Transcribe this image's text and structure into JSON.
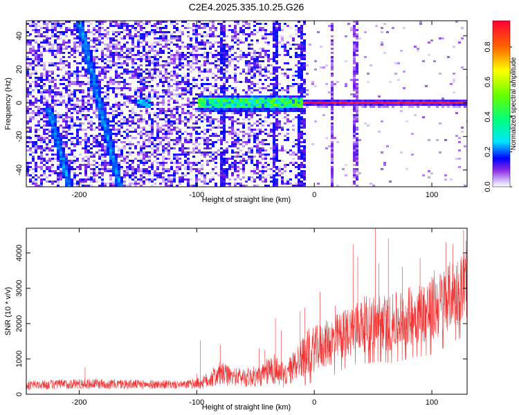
{
  "title": "C2E4.2025.335.10.25.G26",
  "colors": {
    "snr_line": "#ee3333",
    "frame": "#000000"
  },
  "chart_data": [
    {
      "type": "heatmap",
      "xlabel": "Height of straight line (km)",
      "ylabel": "Frequency (Hz)",
      "xlim": [
        -245,
        130
      ],
      "ylim": [
        -50,
        49
      ],
      "x_ticks": [
        -200,
        -100,
        0,
        100
      ],
      "y_ticks": [
        -40,
        -20,
        0,
        20,
        40
      ],
      "colorbar": {
        "label": "Normalized spectral amplitude",
        "range": [
          0.0,
          0.95
        ],
        "ticks": [
          0.0,
          0.2,
          0.4,
          0.6,
          0.8
        ],
        "colormap": "rainbow (white-purple-blue-cyan-green-yellow-red)"
      },
      "features": {
        "carrier_line": {
          "frequency_hz": 0,
          "x_start_km": -100,
          "x_end_km": 130,
          "peak_amplitude": 0.95,
          "onset_strong_km": -10
        },
        "diagonal_streaks": [
          {
            "x_at_top_km": -200,
            "freq_at_top_hz": 49,
            "x_at_bottom_km": -165,
            "freq_at_bottom_hz": -50
          },
          {
            "x_at_top_km": -225,
            "freq_at_top_hz": -5,
            "x_at_bottom_km": -208,
            "freq_at_bottom_hz": -50
          }
        ],
        "vertical_streaks_km": [
          -78,
          -33,
          -12,
          -8,
          15,
          35
        ],
        "noise_floor_region_km": [
          -245,
          -10
        ]
      }
    },
    {
      "type": "line",
      "xlabel": "Height of straight line (km)",
      "ylabel": "SNR (10 * v/v)",
      "xlim": [
        -245,
        130
      ],
      "ylim": [
        0,
        4700
      ],
      "x_ticks": [
        -200,
        -100,
        0,
        100
      ],
      "y_ticks": [
        0,
        1000,
        2000,
        3000,
        4000
      ],
      "series": [
        {
          "envelope_x": [
            -245,
            -200,
            -150,
            -110,
            -95,
            -80,
            -70,
            -55,
            -45,
            -35,
            -25,
            -15,
            -5,
            5,
            15,
            25,
            35,
            45,
            55,
            65,
            75,
            85,
            95,
            105,
            115,
            125,
            130
          ],
          "envelope_mean": [
            250,
            300,
            280,
            270,
            330,
            580,
            500,
            480,
            520,
            750,
            500,
            900,
            1200,
            1350,
            1500,
            1700,
            1900,
            2000,
            2050,
            2000,
            2150,
            2250,
            2350,
            2500,
            2800,
            3000,
            3200
          ],
          "envelope_spread": [
            120,
            150,
            130,
            110,
            180,
            350,
            250,
            280,
            300,
            480,
            320,
            500,
            650,
            650,
            700,
            700,
            750,
            800,
            800,
            800,
            850,
            850,
            900,
            950,
            950,
            1000,
            1050
          ],
          "spikes": [
            {
              "x": -195,
              "y": 760
            },
            {
              "x": -100,
              "y": 580
            },
            {
              "x": -97,
              "y": 1520
            },
            {
              "x": -80,
              "y": 1400
            },
            {
              "x": -47,
              "y": 1300
            },
            {
              "x": -42,
              "y": 1250
            },
            {
              "x": -33,
              "y": 2150
            },
            {
              "x": -28,
              "y": 1800
            },
            {
              "x": -12,
              "y": 2350
            },
            {
              "x": -8,
              "y": 2450
            },
            {
              "x": 5,
              "y": 2900
            },
            {
              "x": 18,
              "y": 2500
            },
            {
              "x": 33,
              "y": 4250
            },
            {
              "x": 37,
              "y": 3900
            },
            {
              "x": 52,
              "y": 4700
            },
            {
              "x": 55,
              "y": 3700
            },
            {
              "x": 63,
              "y": 4400
            },
            {
              "x": 75,
              "y": 3600
            },
            {
              "x": 90,
              "y": 3850
            },
            {
              "x": 102,
              "y": 3500
            },
            {
              "x": 112,
              "y": 4300
            },
            {
              "x": 118,
              "y": 4250
            },
            {
              "x": 127,
              "y": 4650
            },
            {
              "x": 129,
              "y": 4350
            }
          ]
        }
      ]
    }
  ]
}
